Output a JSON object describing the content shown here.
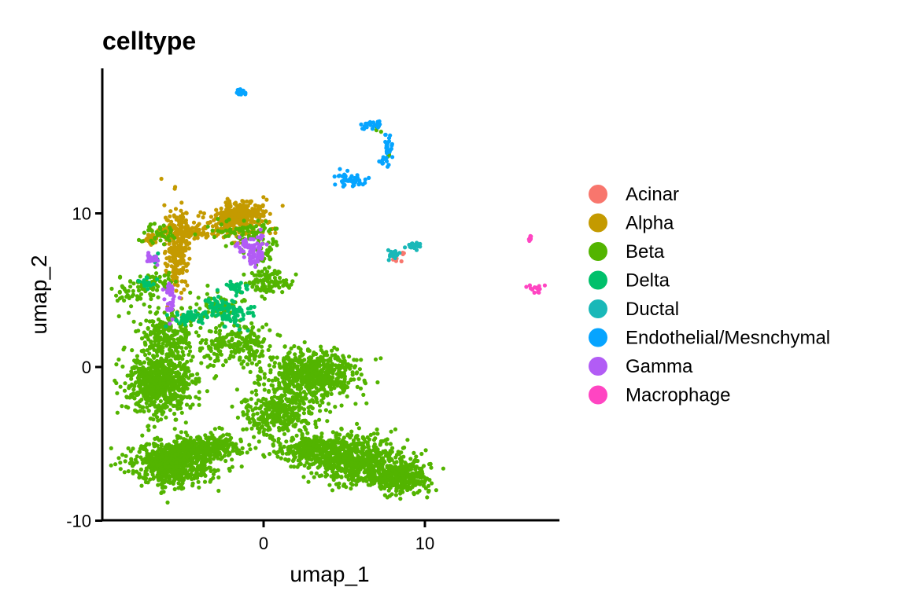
{
  "chart_data": {
    "type": "scatter",
    "title": "celltype",
    "xlabel": "umap_1",
    "ylabel": "umap_2",
    "xlim": [
      -10,
      18.5
    ],
    "ylim": [
      -10,
      19
    ],
    "xticks": [
      0,
      10
    ],
    "yticks": [
      -10,
      0,
      10
    ],
    "grid": false,
    "legend_position": "right",
    "series": [
      {
        "name": "Acinar",
        "color": "#F8766D",
        "clusters": [
          {
            "center": [
              8.3,
              7.0
            ],
            "spread": [
              0.15,
              0.15
            ],
            "count": 6
          },
          {
            "center": [
              8.7,
              7.4
            ],
            "spread": [
              0.08,
              0.06
            ],
            "count": 3
          }
        ]
      },
      {
        "name": "Alpha",
        "color": "#C49A00",
        "clusters": [
          {
            "center": [
              -1.3,
              10.0
            ],
            "spread": [
              0.7,
              0.4
            ],
            "count": 220
          },
          {
            "center": [
              -2.0,
              9.2
            ],
            "spread": [
              0.9,
              0.5
            ],
            "count": 150
          },
          {
            "center": [
              -5.3,
              7.5
            ],
            "spread": [
              0.35,
              1.5
            ],
            "count": 220
          },
          {
            "center": [
              -4.9,
              8.8
            ],
            "spread": [
              0.9,
              0.25
            ],
            "count": 100
          },
          {
            "center": [
              -6.8,
              8.4
            ],
            "spread": [
              0.35,
              0.3
            ],
            "count": 30
          }
        ]
      },
      {
        "name": "Beta",
        "color": "#53B400",
        "clusters": [
          {
            "center": [
              -6.4,
              -1.0
            ],
            "spread": [
              1.0,
              1.0
            ],
            "count": 700
          },
          {
            "center": [
              -5.6,
              -6.3
            ],
            "spread": [
              1.3,
              0.7
            ],
            "count": 650
          },
          {
            "center": [
              -3.5,
              -5.2
            ],
            "spread": [
              1.2,
              0.4
            ],
            "count": 300
          },
          {
            "center": [
              3.0,
              -0.5
            ],
            "spread": [
              1.4,
              0.8
            ],
            "count": 600
          },
          {
            "center": [
              1.0,
              -3.0
            ],
            "spread": [
              1.2,
              0.7
            ],
            "count": 350
          },
          {
            "center": [
              5.5,
              -6.0
            ],
            "spread": [
              1.5,
              0.8
            ],
            "count": 650
          },
          {
            "center": [
              8.5,
              -7.2
            ],
            "spread": [
              0.9,
              0.5
            ],
            "count": 350
          },
          {
            "center": [
              3.0,
              -5.3
            ],
            "spread": [
              1.2,
              0.4
            ],
            "count": 250
          },
          {
            "center": [
              -6.0,
              2.0
            ],
            "spread": [
              0.8,
              0.8
            ],
            "count": 220
          },
          {
            "center": [
              -1.5,
              1.5
            ],
            "spread": [
              1.2,
              0.8
            ],
            "count": 220
          },
          {
            "center": [
              -8.0,
              4.8
            ],
            "spread": [
              0.6,
              0.5
            ],
            "count": 60
          },
          {
            "center": [
              -6.5,
              5.5
            ],
            "spread": [
              0.5,
              0.4
            ],
            "count": 40
          },
          {
            "center": [
              0.3,
              5.5
            ],
            "spread": [
              0.7,
              0.4
            ],
            "count": 90
          },
          {
            "center": [
              0.0,
              7.5
            ],
            "spread": [
              0.4,
              1.0
            ],
            "count": 60
          },
          {
            "center": [
              -3.0,
              4.0
            ],
            "spread": [
              1.0,
              0.4
            ],
            "count": 70
          },
          {
            "center": [
              -6.5,
              8.7
            ],
            "spread": [
              0.6,
              0.4
            ],
            "count": 40
          },
          {
            "center": [
              -1.5,
              8.8
            ],
            "spread": [
              0.9,
              0.4
            ],
            "count": 60
          },
          {
            "center": [
              7.1,
              15.4
            ],
            "spread": [
              0.1,
              0.1
            ],
            "count": 3
          },
          {
            "center": [
              7.8,
              13.8
            ],
            "spread": [
              0.08,
              0.1
            ],
            "count": 3
          }
        ]
      },
      {
        "name": "Delta",
        "color": "#00C06B",
        "clusters": [
          {
            "center": [
              -4.5,
              3.2
            ],
            "spread": [
              0.5,
              0.25
            ],
            "count": 60
          },
          {
            "center": [
              -2.0,
              3.5
            ],
            "spread": [
              0.6,
              0.4
            ],
            "count": 80
          },
          {
            "center": [
              -1.8,
              5.2
            ],
            "spread": [
              0.5,
              0.25
            ],
            "count": 30
          },
          {
            "center": [
              -3.0,
              4.0
            ],
            "spread": [
              0.5,
              0.3
            ],
            "count": 25
          },
          {
            "center": [
              -7.2,
              5.4
            ],
            "spread": [
              0.3,
              0.2
            ],
            "count": 15
          },
          {
            "center": [
              -6.8,
              7.0
            ],
            "spread": [
              0.2,
              0.2
            ],
            "count": 8
          }
        ]
      },
      {
        "name": "Ductal",
        "color": "#00B6EB",
        "display_color": "#19B8B8",
        "clusters": [
          {
            "center": [
              7.9,
              7.3
            ],
            "spread": [
              0.25,
              0.15
            ],
            "count": 20
          },
          {
            "center": [
              9.4,
              7.9
            ],
            "spread": [
              0.25,
              0.12
            ],
            "count": 15
          }
        ]
      },
      {
        "name": "Endothelial/Mesnchymal",
        "color": "#06A4FF",
        "clusters": [
          {
            "center": [
              -1.4,
              17.9
            ],
            "spread": [
              0.15,
              0.1
            ],
            "count": 20
          },
          {
            "center": [
              6.7,
              15.7
            ],
            "spread": [
              0.3,
              0.15
            ],
            "count": 22
          },
          {
            "center": [
              7.7,
              14.5
            ],
            "spread": [
              0.15,
              0.4
            ],
            "count": 25
          },
          {
            "center": [
              7.5,
              13.3
            ],
            "spread": [
              0.15,
              0.15
            ],
            "count": 10
          },
          {
            "center": [
              5.4,
              12.2
            ],
            "spread": [
              0.5,
              0.25
            ],
            "count": 45
          }
        ]
      },
      {
        "name": "Gamma",
        "color": "#A58AFF",
        "display_color": "#B25CF5",
        "clusters": [
          {
            "center": [
              -0.5,
              7.5
            ],
            "spread": [
              0.3,
              0.6
            ],
            "count": 60
          },
          {
            "center": [
              -1.3,
              7.9
            ],
            "spread": [
              0.3,
              0.3
            ],
            "count": 20
          },
          {
            "center": [
              -5.7,
              4.2
            ],
            "spread": [
              0.2,
              0.5
            ],
            "count": 30
          },
          {
            "center": [
              -6.8,
              7.0
            ],
            "spread": [
              0.2,
              0.3
            ],
            "count": 15
          },
          {
            "center": [
              -6.0,
              5.2
            ],
            "spread": [
              0.2,
              0.2
            ],
            "count": 6
          }
        ]
      },
      {
        "name": "Macrophage",
        "color": "#FB61D7",
        "display_color": "#FF45C2",
        "clusters": [
          {
            "center": [
              16.5,
              8.4
            ],
            "spread": [
              0.05,
              0.1
            ],
            "count": 10
          },
          {
            "center": [
              16.9,
              5.1
            ],
            "spread": [
              0.3,
              0.18
            ],
            "count": 15
          }
        ]
      }
    ]
  }
}
